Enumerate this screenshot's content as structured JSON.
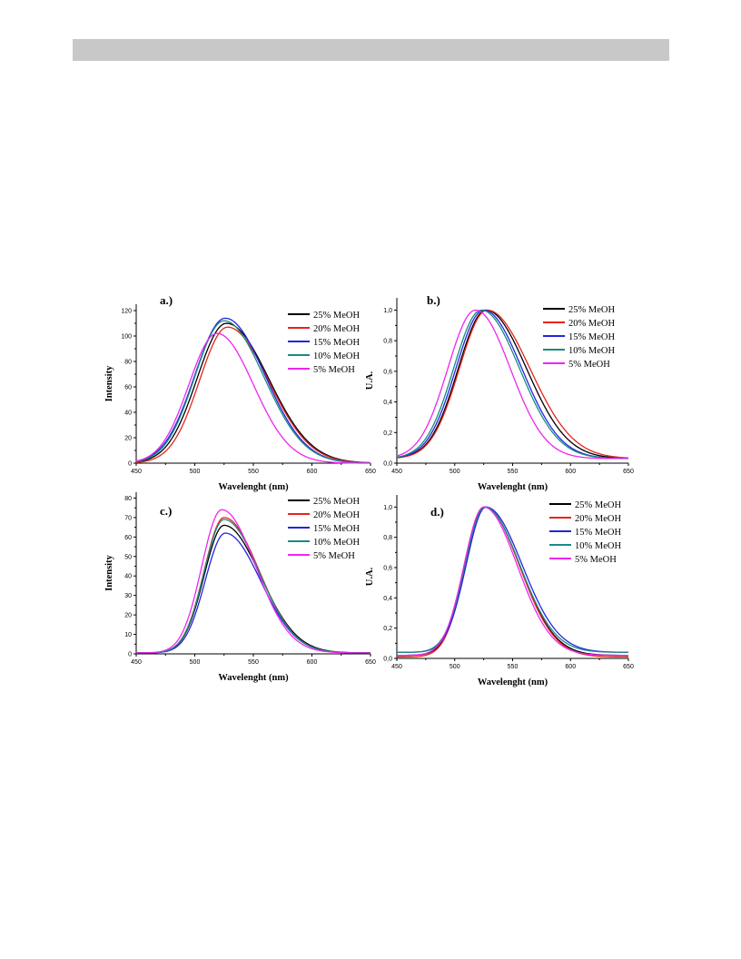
{
  "colors": {
    "25% MeOH": "#000000",
    "20% MeOH": "#e8231c",
    "15% MeOH": "#2424e0",
    "10% MeOH": "#1a8a84",
    "5% MeOH": "#ee26ee"
  },
  "chart_data": [
    {
      "id": "a",
      "type": "line",
      "panel_label": "a.)",
      "xlabel": "Wavelenght (nm)",
      "ylabel": "Intensity",
      "xlim": [
        450,
        650
      ],
      "ylim": [
        0,
        125
      ],
      "xticks": [
        450,
        500,
        550,
        600,
        650
      ],
      "yticks": [
        0,
        20,
        40,
        60,
        80,
        100,
        120
      ],
      "yticklabels": [
        "0",
        "20",
        "40",
        "60",
        "80",
        "100",
        "120"
      ],
      "legend_loc": "top-right",
      "series": [
        {
          "name": "25% MeOH",
          "peak": 110,
          "center": 527,
          "sl": 25,
          "sr": 36,
          "base": 0
        },
        {
          "name": "20% MeOH",
          "peak": 107,
          "center": 528,
          "sl": 24,
          "sr": 35,
          "base": 0
        },
        {
          "name": "15% MeOH",
          "peak": 114,
          "center": 526,
          "sl": 26,
          "sr": 34,
          "base": 0
        },
        {
          "name": "10% MeOH",
          "peak": 112,
          "center": 525,
          "sl": 25,
          "sr": 34,
          "base": 0
        },
        {
          "name": "5% MeOH",
          "peak": 102,
          "center": 519,
          "sl": 24,
          "sr": 31,
          "base": 0
        }
      ]
    },
    {
      "id": "b",
      "type": "line",
      "panel_label": "b.)",
      "xlabel": "Wavelenght (nm)",
      "ylabel": "U.A.",
      "xlim": [
        450,
        650
      ],
      "ylim": [
        0,
        1.08
      ],
      "xticks": [
        450,
        500,
        550,
        600,
        650
      ],
      "yticks": [
        0,
        0.2,
        0.4,
        0.6,
        0.8,
        1.0
      ],
      "yticklabels": [
        "0,0",
        "0,2",
        "0,4",
        "0,6",
        "0,8",
        "1,0"
      ],
      "legend_loc": "top-right",
      "series": [
        {
          "name": "25% MeOH",
          "peak": 1.0,
          "center": 527,
          "sl": 24,
          "sr": 35,
          "base": 0.03
        },
        {
          "name": "20% MeOH",
          "peak": 1.0,
          "center": 528,
          "sl": 24,
          "sr": 37,
          "base": 0.03
        },
        {
          "name": "15% MeOH",
          "peak": 1.0,
          "center": 525,
          "sl": 24,
          "sr": 33,
          "base": 0.03
        },
        {
          "name": "10% MeOH",
          "peak": 1.0,
          "center": 523,
          "sl": 24,
          "sr": 33,
          "base": 0.03
        },
        {
          "name": "5% MeOH",
          "peak": 1.0,
          "center": 518,
          "sl": 24,
          "sr": 30,
          "base": 0.03
        }
      ]
    },
    {
      "id": "c",
      "type": "line",
      "panel_label": "c.)",
      "xlabel": "Wavelenght (nm)",
      "ylabel": "Intensity",
      "xlim": [
        450,
        650
      ],
      "ylim": [
        0,
        83
      ],
      "xticks": [
        450,
        500,
        550,
        600,
        650
      ],
      "yticks": [
        0,
        10,
        20,
        30,
        40,
        50,
        60,
        70,
        80
      ],
      "yticklabels": [
        "0",
        "10",
        "20",
        "30",
        "40",
        "50",
        "60",
        "70",
        "80"
      ],
      "legend_loc": "top-right",
      "series": [
        {
          "name": "25% MeOH",
          "peak": 66,
          "center": 525,
          "sl": 17,
          "sr": 31,
          "base": 0.5
        },
        {
          "name": "20% MeOH",
          "peak": 70,
          "center": 525,
          "sl": 17,
          "sr": 30,
          "base": 0.5
        },
        {
          "name": "15% MeOH",
          "peak": 62,
          "center": 526,
          "sl": 17,
          "sr": 30,
          "base": 0.5
        },
        {
          "name": "10% MeOH",
          "peak": 69,
          "center": 525,
          "sl": 17,
          "sr": 30,
          "base": 0.5
        },
        {
          "name": "5% MeOH",
          "peak": 74,
          "center": 523,
          "sl": 17,
          "sr": 29,
          "base": 0.5
        }
      ]
    },
    {
      "id": "d",
      "type": "line",
      "panel_label": "d.)",
      "xlabel": "Wavelenght (nm)",
      "ylabel": "U.A.",
      "xlim": [
        450,
        650
      ],
      "ylim": [
        0,
        1.08
      ],
      "xticks": [
        450,
        500,
        550,
        600,
        650
      ],
      "yticks": [
        0,
        0.2,
        0.4,
        0.6,
        0.8,
        1.0
      ],
      "yticklabels": [
        "0,0",
        "0,2",
        "0,4",
        "0,6",
        "0,8",
        "1,0"
      ],
      "legend_loc": "top-right",
      "series": [
        {
          "name": "25% MeOH",
          "peak": 1.0,
          "center": 526,
          "sl": 17,
          "sr": 30,
          "base": 0.02
        },
        {
          "name": "20% MeOH",
          "peak": 1.0,
          "center": 526,
          "sl": 17,
          "sr": 30,
          "base": 0.01
        },
        {
          "name": "15% MeOH",
          "peak": 1.0,
          "center": 527,
          "sl": 17,
          "sr": 31,
          "base": 0.04
        },
        {
          "name": "10% MeOH",
          "peak": 1.0,
          "center": 526,
          "sl": 17,
          "sr": 30,
          "base": 0.04
        },
        {
          "name": "5% MeOH",
          "peak": 1.0,
          "center": 525,
          "sl": 17,
          "sr": 29,
          "base": 0.02
        }
      ]
    }
  ]
}
